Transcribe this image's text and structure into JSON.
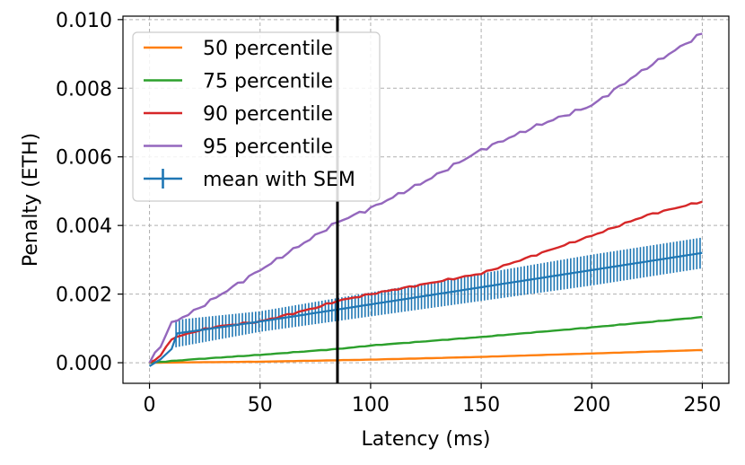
{
  "chart_data": {
    "type": "line",
    "xlabel": "Latency (ms)",
    "ylabel": "Penalty (ETH)",
    "xlim": [
      -12,
      262
    ],
    "ylim": [
      -0.0006,
      0.0101
    ],
    "xticks": [
      0,
      50,
      100,
      150,
      200,
      250
    ],
    "xtick_labels": [
      "0",
      "50",
      "100",
      "150",
      "200",
      "250"
    ],
    "yticks": [
      0,
      0.002,
      0.004,
      0.006,
      0.008,
      0.01
    ],
    "ytick_labels": [
      "0.000",
      "0.002",
      "0.004",
      "0.006",
      "0.008",
      "0.010"
    ],
    "grid": true,
    "legend_position": "top-left",
    "vline": {
      "x": 85,
      "color": "#000000"
    },
    "series": [
      {
        "name": "50 percentile",
        "color": "#ff7f0e",
        "x": [
          0,
          50,
          100,
          150,
          200,
          250
        ],
        "y": [
          0,
          3e-05,
          9e-05,
          0.00017,
          0.00027,
          0.00037
        ]
      },
      {
        "name": "75 percentile",
        "color": "#2ca02c",
        "x": [
          0,
          20,
          50,
          85,
          100,
          150,
          200,
          250
        ],
        "y": [
          0,
          0.0001,
          0.00023,
          0.0004,
          0.0005,
          0.00075,
          0.00103,
          0.00133
        ]
      },
      {
        "name": "90 percentile",
        "color": "#d62728",
        "x": [
          0,
          5,
          10,
          20,
          30,
          50,
          75,
          85,
          100,
          150,
          200,
          225,
          250
        ],
        "y": [
          0,
          0.0002,
          0.0007,
          0.0009,
          0.00105,
          0.0012,
          0.0016,
          0.0018,
          0.002,
          0.0026,
          0.0037,
          0.0043,
          0.0047
        ]
      },
      {
        "name": "95 percentile",
        "color": "#9467bd",
        "x": [
          0,
          5,
          10,
          20,
          30,
          40,
          50,
          60,
          70,
          85,
          100,
          125,
          150,
          175,
          200,
          225,
          250
        ],
        "y": [
          0,
          0.0005,
          0.00115,
          0.0015,
          0.0019,
          0.0023,
          0.0027,
          0.0031,
          0.0035,
          0.0041,
          0.0045,
          0.0053,
          0.0062,
          0.0069,
          0.0075,
          0.0086,
          0.0096
        ]
      }
    ],
    "errorbar_series": {
      "name": "mean with SEM",
      "color": "#1f77b4",
      "x": [
        0,
        5,
        10,
        12,
        50,
        100,
        150,
        200,
        250
      ],
      "y": [
        -0.0001,
        0.0001,
        0.0004,
        0.00085,
        0.0012,
        0.0017,
        0.0022,
        0.0027,
        0.0032
      ],
      "sem": [
        0.0001,
        0.0001,
        0.0001,
        0.0004,
        0.0003,
        0.00035,
        0.0004,
        0.00045,
        0.00045
      ],
      "errorbar_every_ms": 1.5,
      "errorbar_start_ms": 12
    },
    "legend": [
      "50 percentile",
      "75 percentile",
      "90 percentile",
      "95 percentile",
      "mean with SEM"
    ]
  }
}
